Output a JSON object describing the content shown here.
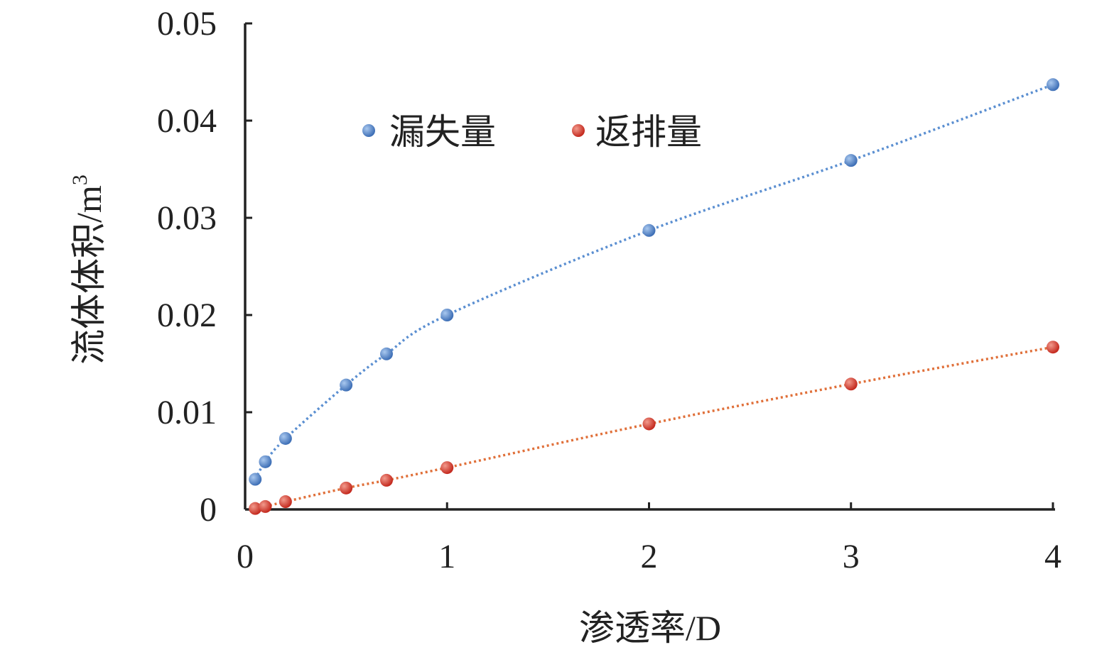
{
  "chart_data": {
    "type": "scatter",
    "title": "",
    "xlabel": "渗透率/D",
    "ylabel_base": "流体体积/m",
    "ylabel_sup": "3",
    "xlim": [
      0,
      4
    ],
    "ylim": [
      0,
      0.05
    ],
    "xticks": [
      0,
      1,
      2,
      3,
      4
    ],
    "xtick_labels": [
      "0",
      "1",
      "2",
      "3",
      "4"
    ],
    "yticks": [
      0,
      0.01,
      0.02,
      0.03,
      0.04,
      0.05
    ],
    "ytick_labels": [
      "0",
      "0.01",
      "0.02",
      "0.03",
      "0.04",
      "0.05"
    ],
    "grid": false,
    "legend_position": "top-left",
    "series": [
      {
        "name": "漏失量",
        "color": "#4a7ec7",
        "trend_color": "#5b8fd1",
        "x": [
          0.05,
          0.1,
          0.2,
          0.5,
          0.7,
          1,
          2,
          3,
          4
        ],
        "y": [
          0.0031,
          0.0049,
          0.0073,
          0.0128,
          0.016,
          0.02,
          0.0287,
          0.0359,
          0.0437
        ]
      },
      {
        "name": "返排量",
        "color": "#d8362a",
        "trend_color": "#e0703a",
        "x": [
          0.05,
          0.1,
          0.2,
          0.5,
          0.7,
          1,
          2,
          3,
          4
        ],
        "y": [
          0.0001,
          0.0003,
          0.0008,
          0.0022,
          0.003,
          0.0043,
          0.0088,
          0.0129,
          0.0167
        ]
      }
    ]
  }
}
